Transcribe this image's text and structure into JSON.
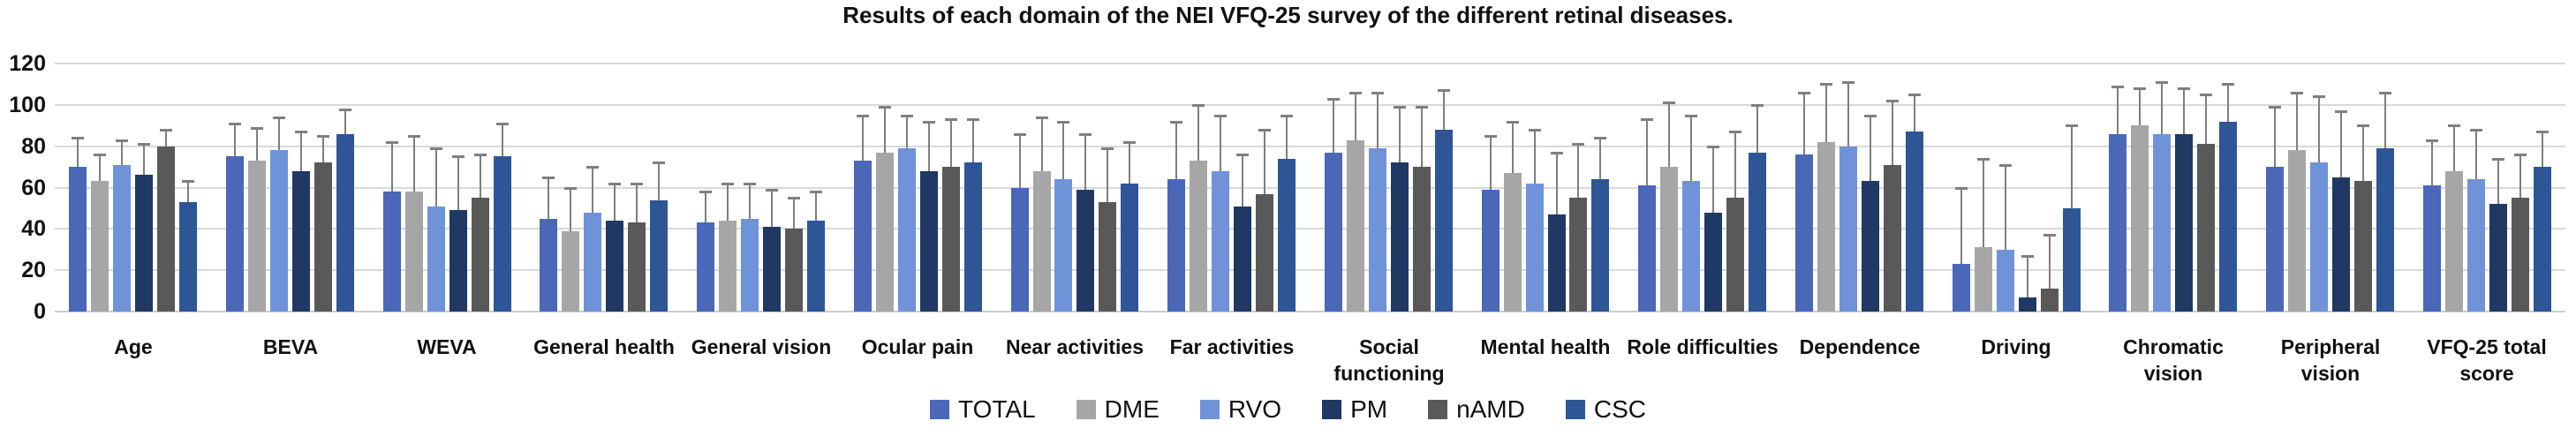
{
  "chart_data": {
    "type": "bar",
    "title": "Results of each domain of the NEI VFQ-25 survey of the different retinal diseases.",
    "xlabel": "",
    "ylabel": "",
    "ylim": [
      0,
      120
    ],
    "y_ticks": [
      0,
      20,
      40,
      60,
      80,
      100,
      120
    ],
    "grid": true,
    "legend_position": "bottom",
    "error_bars": "upper",
    "categories": [
      "Age",
      "BEVA",
      "WEVA",
      "General health",
      "General vision",
      "Ocular pain",
      "Near activities",
      "Far activities",
      "Social\nfunctioning",
      "Mental health",
      "Role difficulties",
      "Dependence",
      "Driving",
      "Chromatic\nvision",
      "Peripheral\nvision",
      "VFQ-25 total\nscore"
    ],
    "series": [
      {
        "name": "TOTAL",
        "color": "#4a67b8",
        "values": [
          70,
          75,
          58,
          45,
          43,
          73,
          60,
          64,
          77,
          59,
          61,
          76,
          23,
          86,
          70,
          61
        ],
        "error_upper": [
          84,
          91,
          82,
          65,
          58,
          95,
          86,
          92,
          103,
          85,
          93,
          106,
          60,
          109,
          99,
          83
        ]
      },
      {
        "name": "DME",
        "color": "#a6a6a6",
        "values": [
          63,
          73,
          58,
          39,
          44,
          77,
          68,
          73,
          83,
          67,
          70,
          82,
          31,
          90,
          78,
          68
        ],
        "error_upper": [
          76,
          89,
          85,
          60,
          62,
          99,
          94,
          100,
          106,
          92,
          101,
          110,
          74,
          108,
          106,
          90
        ]
      },
      {
        "name": "RVO",
        "color": "#6f92d9",
        "values": [
          71,
          78,
          51,
          48,
          45,
          79,
          64,
          68,
          79,
          62,
          63,
          80,
          30,
          86,
          72,
          64
        ],
        "error_upper": [
          83,
          94,
          79,
          70,
          62,
          95,
          92,
          95,
          106,
          88,
          95,
          111,
          71,
          111,
          104,
          88
        ]
      },
      {
        "name": "PM",
        "color": "#203864",
        "values": [
          66,
          68,
          49,
          44,
          41,
          68,
          59,
          51,
          72,
          47,
          48,
          63,
          7,
          86,
          65,
          52
        ],
        "error_upper": [
          81,
          87,
          75,
          62,
          59,
          92,
          86,
          76,
          99,
          77,
          80,
          95,
          27,
          108,
          97,
          74
        ]
      },
      {
        "name": "nAMD",
        "color": "#595959",
        "values": [
          80,
          72,
          55,
          43,
          40,
          70,
          53,
          57,
          70,
          55,
          55,
          71,
          11,
          81,
          63,
          55
        ],
        "error_upper": [
          88,
          85,
          76,
          62,
          55,
          93,
          79,
          88,
          99,
          81,
          87,
          102,
          37,
          105,
          90,
          76
        ]
      },
      {
        "name": "CSC",
        "color": "#2e5596",
        "values": [
          53,
          86,
          75,
          54,
          44,
          72,
          62,
          74,
          88,
          64,
          77,
          87,
          50,
          92,
          79,
          70
        ],
        "error_upper": [
          63,
          98,
          91,
          72,
          58,
          93,
          82,
          95,
          107,
          84,
          100,
          105,
          90,
          110,
          106,
          87
        ]
      }
    ]
  }
}
